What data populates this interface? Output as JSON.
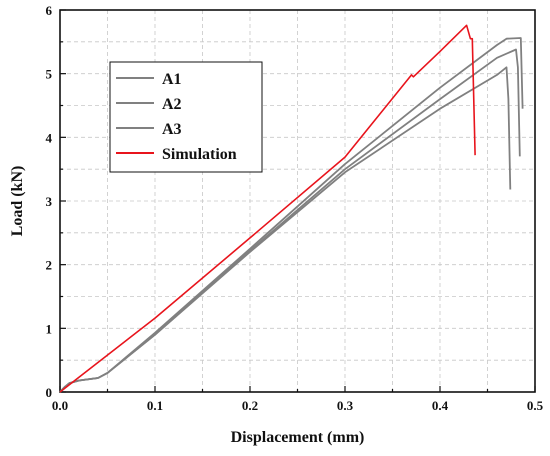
{
  "chart_data": {
    "type": "line",
    "xlabel": "Displacement (mm)",
    "ylabel": "Load (kN)",
    "xlim": [
      0.0,
      0.5
    ],
    "ylim": [
      0,
      6
    ],
    "xticks": [
      "0.0",
      "0.1",
      "0.2",
      "0.3",
      "0.4",
      "0.5"
    ],
    "yticks": [
      "0",
      "1",
      "2",
      "3",
      "4",
      "5",
      "6"
    ],
    "grid": true,
    "legend_position": "upper-left",
    "series": [
      {
        "name": "A1",
        "color": "#808080",
        "points": [
          [
            0.0,
            0.0
          ],
          [
            0.005,
            0.08
          ],
          [
            0.01,
            0.14
          ],
          [
            0.02,
            0.18
          ],
          [
            0.04,
            0.22
          ],
          [
            0.05,
            0.3
          ],
          [
            0.1,
            0.93
          ],
          [
            0.2,
            2.25
          ],
          [
            0.3,
            3.58
          ],
          [
            0.4,
            4.78
          ],
          [
            0.46,
            5.45
          ],
          [
            0.47,
            5.55
          ],
          [
            0.485,
            5.56
          ],
          [
            0.487,
            4.45
          ]
        ]
      },
      {
        "name": "A2",
        "color": "#808080",
        "points": [
          [
            0.0,
            0.0
          ],
          [
            0.005,
            0.08
          ],
          [
            0.01,
            0.14
          ],
          [
            0.02,
            0.18
          ],
          [
            0.04,
            0.22
          ],
          [
            0.05,
            0.3
          ],
          [
            0.1,
            0.9
          ],
          [
            0.2,
            2.22
          ],
          [
            0.3,
            3.5
          ],
          [
            0.4,
            4.6
          ],
          [
            0.46,
            5.25
          ],
          [
            0.48,
            5.38
          ],
          [
            0.482,
            5.1
          ],
          [
            0.484,
            3.7
          ]
        ]
      },
      {
        "name": "A3",
        "color": "#808080",
        "points": [
          [
            0.0,
            0.0
          ],
          [
            0.005,
            0.08
          ],
          [
            0.01,
            0.14
          ],
          [
            0.02,
            0.18
          ],
          [
            0.04,
            0.22
          ],
          [
            0.05,
            0.3
          ],
          [
            0.1,
            0.9
          ],
          [
            0.2,
            2.2
          ],
          [
            0.3,
            3.45
          ],
          [
            0.4,
            4.45
          ],
          [
            0.46,
            4.98
          ],
          [
            0.47,
            5.1
          ],
          [
            0.472,
            4.6
          ],
          [
            0.474,
            3.18
          ]
        ]
      },
      {
        "name": "Simulation",
        "color": "#e8141c",
        "points": [
          [
            0.0,
            0.0
          ],
          [
            0.1,
            1.16
          ],
          [
            0.2,
            2.42
          ],
          [
            0.3,
            3.69
          ],
          [
            0.37,
            4.98
          ],
          [
            0.372,
            4.95
          ],
          [
            0.4,
            5.35
          ],
          [
            0.428,
            5.76
          ],
          [
            0.432,
            5.55
          ],
          [
            0.434,
            5.55
          ],
          [
            0.437,
            3.72
          ]
        ]
      }
    ]
  }
}
